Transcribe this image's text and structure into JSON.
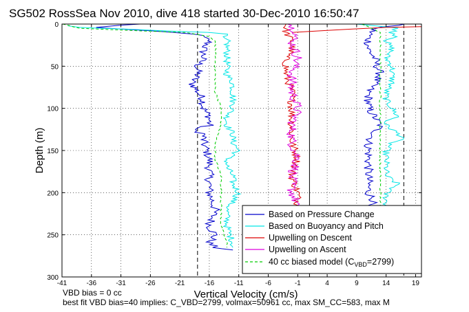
{
  "chart_data": {
    "type": "line",
    "title": "SG502 RossSea Nov 2010, dive 418 started 30-Dec-2010 16:50:47",
    "xlabel": "Vertical Velocity (cm/s)",
    "ylabel": "Depth (m)",
    "xlim": [
      -41,
      20
    ],
    "ylim": [
      300,
      0
    ],
    "y_reversed": true,
    "grid": true,
    "x_ticks": [
      -41,
      -36,
      -31,
      -26,
      -21,
      -16,
      -11,
      -6,
      -1,
      4,
      9,
      14,
      19
    ],
    "x_tick_labels": [
      "-41",
      "-36",
      "-31",
      "-26",
      "-21",
      "-16",
      "-11",
      "-6",
      "-1",
      "4",
      "9",
      "14",
      "19"
    ],
    "y_ticks": [
      0,
      50,
      100,
      150,
      200,
      250,
      300
    ],
    "y_tick_labels": [
      "0",
      "50",
      "100",
      "150",
      "200",
      "250",
      "300"
    ],
    "legend_position": "bottom-right",
    "legend": [
      {
        "label": "Based on Pressure Change",
        "color": "#0000cc",
        "style": "solid"
      },
      {
        "label": "Based on Buoyancy and Pitch",
        "color": "#00e5e5",
        "style": "solid"
      },
      {
        "label": "Upwelling on Descent",
        "color": "#dd0000",
        "style": "solid"
      },
      {
        "label": "Upwelling on Ascent",
        "color": "#dd00dd",
        "style": "solid"
      },
      {
        "label_prefix": "40 cc biased model (C",
        "label_sub": "VBD",
        "label_suffix": "=2799)",
        "color": "#00cc00",
        "style": "dashed"
      }
    ],
    "reference_lines": [
      {
        "x": -18,
        "style": "dashed",
        "color": "#000000"
      },
      {
        "x": 1,
        "style": "solid",
        "color": "#000000"
      },
      {
        "x": 17,
        "style": "dashed",
        "color": "#000000"
      }
    ],
    "series": [
      {
        "name": "Based on Pressure Change",
        "color": "#0000cc",
        "segments": [
          {
            "depth": [
              0,
              4,
              8,
              10,
              12,
              20,
              30,
              40,
              50,
              60,
              70,
              80,
              90,
              100,
              110,
              120,
              125,
              130,
              140,
              160,
              180,
              200,
              220,
              240,
              250,
              260,
              265,
              268
            ],
            "velocity": [
              -28,
              -36,
              -26,
              -22,
              -18,
              -16,
              -17,
              -17,
              -18,
              -18,
              -19,
              -18,
              -17,
              -17,
              -16,
              -16,
              -19,
              -17,
              -17,
              -16,
              -16,
              -16,
              -15,
              -16,
              -15,
              -16,
              -15,
              -12
            ]
          },
          {
            "depth": [
              0,
              5,
              15,
              30,
              40,
              60,
              80,
              100,
              120,
              140,
              160,
              180,
              200,
              210,
              215
            ],
            "velocity": [
              17,
              12,
              11,
              11,
              12,
              13,
              11,
              11,
              13,
              11,
              11,
              11,
              11,
              12,
              11
            ]
          }
        ]
      },
      {
        "name": "Based on Buoyancy and Pitch",
        "color": "#00e5e5",
        "segments": [
          {
            "depth": [
              2,
              4,
              6,
              8,
              10,
              12,
              15,
              20,
              30,
              40,
              50,
              60,
              70,
              80,
              90,
              100,
              110,
              120,
              130,
              140,
              150,
              160,
              170,
              180,
              190,
              200,
              210,
              220,
              240,
              260,
              265
            ],
            "velocity": [
              -40,
              -38,
              -30,
              -24,
              -16,
              -13,
              -14,
              -13,
              -13,
              -13,
              -13,
              -13,
              -12,
              -12,
              -12,
              -12,
              -13,
              -13,
              -12,
              -12,
              -11,
              -13,
              -13,
              -12,
              -12,
              -11,
              -12,
              -13,
              -13,
              -12,
              -12
            ]
          },
          {
            "depth": [
              0,
              5,
              10,
              15,
              20,
              30,
              40,
              50,
              60,
              70,
              80,
              90,
              100,
              110,
              115,
              120,
              130,
              135,
              140,
              150,
              160,
              180,
              190,
              195,
              200,
              215
            ],
            "velocity": [
              9,
              16,
              15,
              16,
              14,
              15,
              14,
              15,
              15,
              15,
              14,
              14,
              15,
              16,
              14,
              14,
              16,
              17,
              15,
              14,
              14,
              14,
              16,
              15,
              14,
              14
            ]
          }
        ]
      },
      {
        "name": "Upwelling on Descent",
        "color": "#dd0000",
        "segments": [
          {
            "depth": [
              0,
              10,
              20,
              30,
              40,
              60,
              80,
              100,
              120,
              140,
              160,
              180,
              200,
              215
            ],
            "velocity": [
              -3,
              -3,
              -2,
              -2,
              -3,
              -3,
              -2,
              -2,
              -2,
              -2,
              -1,
              -2,
              -1,
              -1
            ]
          },
          {
            "depth": [
              10,
              8,
              6,
              4,
              3
            ],
            "velocity": [
              -2,
              3,
              8,
              14,
              20
            ]
          }
        ]
      },
      {
        "name": "Upwelling on Ascent",
        "color": "#dd00dd",
        "segments": [
          {
            "depth": [
              0,
              5,
              10,
              20,
              40,
              60,
              80,
              100,
              120,
              140,
              160,
              180,
              200,
              215
            ],
            "velocity": [
              -2,
              -2,
              -1,
              -2,
              -1,
              -2,
              -2,
              -1,
              -2,
              -2,
              -1,
              -2,
              -2,
              -1
            ]
          }
        ]
      },
      {
        "name": "40 cc biased model",
        "color": "#00cc00",
        "segments": [
          {
            "depth": [
              0,
              5,
              8,
              10,
              15,
              20,
              40,
              60,
              80,
              100,
              120,
              140,
              160,
              180,
              200,
              220,
              240,
              260,
              265
            ],
            "velocity": [
              -41,
              -38,
              -28,
              -20,
              -16,
              -15,
              -15,
              -15,
              -15,
              -14,
              -14,
              -15,
              -15,
              -14,
              -14,
              -14,
              -14,
              -13,
              -13
            ]
          },
          {
            "depth": [
              0,
              10,
              20,
              40,
              60,
              80,
              100,
              120,
              140,
              160,
              180,
              200,
              215
            ],
            "velocity": [
              10,
              13,
              13,
              13,
              13,
              13,
              13,
              13,
              13,
              13,
              13,
              13,
              13
            ]
          }
        ]
      }
    ],
    "notes": [
      "VBD bias = 0 cc",
      "best fit VBD bias=40 implies: C_VBD=2799, volmax=50961 cc, max SM_CC=583, max M"
    ]
  }
}
